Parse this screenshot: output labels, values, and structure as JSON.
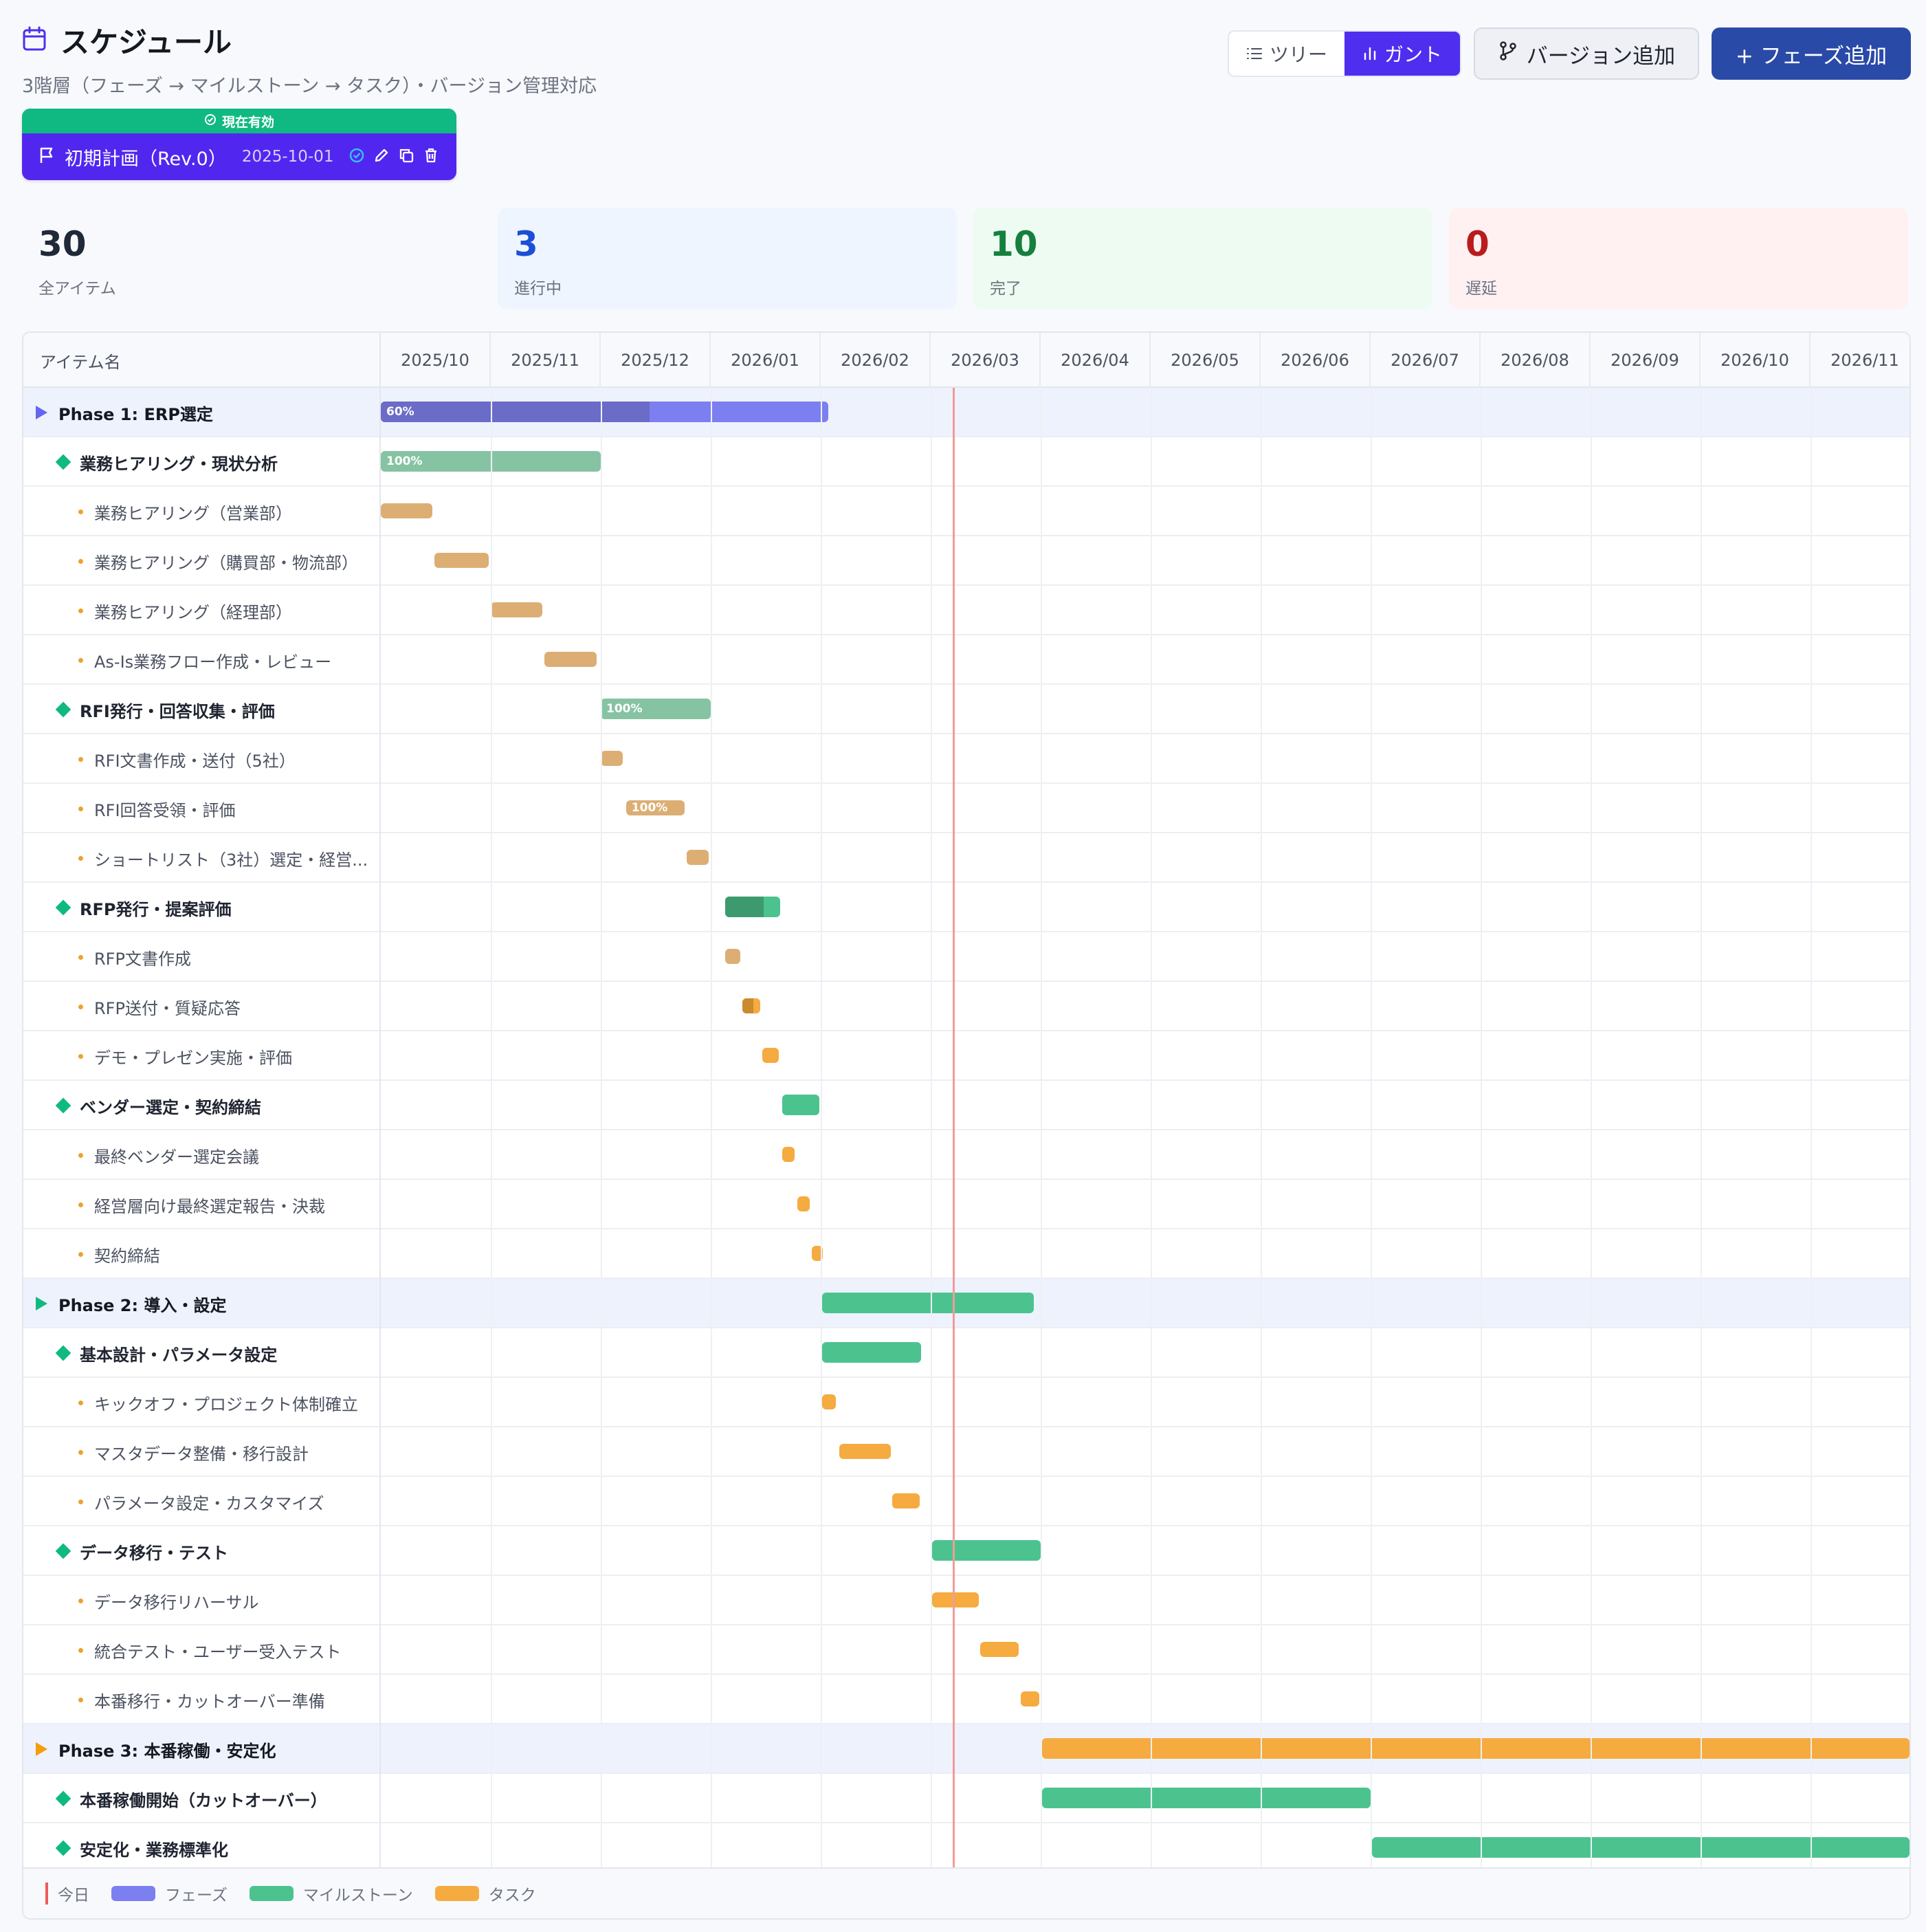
{
  "header": {
    "title": "スケジュール",
    "subtitle": "3階層（フェーズ → マイルストーン → タスク）・バージョン管理対応"
  },
  "view_toggle": {
    "tree_label": "ツリー",
    "gantt_label": "ガント",
    "active": "gantt"
  },
  "buttons": {
    "add_version": "バージョン追加",
    "add_phase": "+ フェーズ追加"
  },
  "version": {
    "badge": "現在有効",
    "name": "初期計画（Rev.0）",
    "date": "2025-10-01"
  },
  "stats": [
    {
      "value": "30",
      "label": "全アイテム",
      "color": "#1f2937",
      "bg": "#f8f9fc"
    },
    {
      "value": "3",
      "label": "進行中",
      "color": "#1d4ed8",
      "bg": "#eef5ff"
    },
    {
      "value": "10",
      "label": "完了",
      "color": "#15803d",
      "bg": "#eefbf2"
    },
    {
      "value": "0",
      "label": "遅延",
      "color": "#b91c1c",
      "bg": "#fff1f1"
    }
  ],
  "gantt": {
    "name_header": "アイテム名",
    "months": [
      "2025/10",
      "2025/11",
      "2025/12",
      "2026/01",
      "2026/02",
      "2026/03",
      "2026/04",
      "2026/05",
      "2026/06",
      "2026/07",
      "2026/08",
      "2026/09",
      "2026/10",
      "2026/11"
    ],
    "today_month_index": 5.2,
    "rows": [
      {
        "type": "phase",
        "name": "Phase 1: ERP選定",
        "color": "#6366f1",
        "start": 0.0,
        "end": 4.07,
        "progress": 60,
        "progress_label": "60%"
      },
      {
        "type": "milestone",
        "name": "業務ヒアリング・現状分析",
        "start": 0.0,
        "end": 2.0,
        "done": true,
        "progress_label": "100%"
      },
      {
        "type": "task",
        "name": "業務ヒアリング（営業部）",
        "start": 0.0,
        "end": 0.47,
        "done": true
      },
      {
        "type": "task",
        "name": "業務ヒアリング（購買部・物流部）",
        "start": 0.49,
        "end": 0.98,
        "done": true
      },
      {
        "type": "task",
        "name": "業務ヒアリング（経理部）",
        "start": 1.0,
        "end": 1.47,
        "done": true
      },
      {
        "type": "task",
        "name": "As-Is業務フロー作成・レビュー",
        "start": 1.49,
        "end": 1.96,
        "done": true
      },
      {
        "type": "milestone",
        "name": "RFI発行・回答収集・評価",
        "start": 2.0,
        "end": 3.0,
        "done": true,
        "progress_label": "100%"
      },
      {
        "type": "task",
        "name": "RFI文書作成・送付（5社）",
        "start": 2.0,
        "end": 2.2,
        "done": true
      },
      {
        "type": "task",
        "name": "RFI回答受領・評価",
        "start": 2.23,
        "end": 2.76,
        "done": true,
        "progress_label": "100%"
      },
      {
        "type": "task",
        "name": "ショートリスト（3社）選定・経営...",
        "start": 2.78,
        "end": 2.98,
        "done": true
      },
      {
        "type": "milestone",
        "name": "RFP発行・提案評価",
        "start": 3.13,
        "end": 3.63,
        "progress": 70
      },
      {
        "type": "task",
        "name": "RFP文書作成",
        "start": 3.13,
        "end": 3.27,
        "done": true
      },
      {
        "type": "task",
        "name": "RFP送付・質疑応答",
        "start": 3.29,
        "end": 3.45,
        "progress": 60
      },
      {
        "type": "task",
        "name": "デモ・プレゼン実施・評価",
        "start": 3.47,
        "end": 3.62
      },
      {
        "type": "milestone",
        "name": "ベンダー選定・契約締結",
        "start": 3.65,
        "end": 3.99
      },
      {
        "type": "task",
        "name": "最終ベンダー選定会議",
        "start": 3.65,
        "end": 3.76
      },
      {
        "type": "task",
        "name": "経営層向け最終選定報告・決裁",
        "start": 3.79,
        "end": 3.9
      },
      {
        "type": "task",
        "name": "契約締結",
        "start": 3.92,
        "end": 4.02
      },
      {
        "type": "phase",
        "name": "Phase 2: 導入・設定",
        "color": "#10b981",
        "start": 4.01,
        "end": 5.94
      },
      {
        "type": "milestone",
        "name": "基本設計・パラメータ設定",
        "start": 4.01,
        "end": 4.91
      },
      {
        "type": "task",
        "name": "キックオフ・プロジェクト体制確立",
        "start": 4.01,
        "end": 4.14
      },
      {
        "type": "task",
        "name": "マスタデータ整備・移行設計",
        "start": 4.17,
        "end": 4.64
      },
      {
        "type": "task",
        "name": "パラメータ設定・カスタマイズ",
        "start": 4.65,
        "end": 4.9
      },
      {
        "type": "milestone",
        "name": "データ移行・テスト",
        "start": 5.01,
        "end": 6.0
      },
      {
        "type": "task",
        "name": "データ移行リハーサル",
        "start": 5.01,
        "end": 5.44
      },
      {
        "type": "task",
        "name": "統合テスト・ユーザー受入テスト",
        "start": 5.45,
        "end": 5.8
      },
      {
        "type": "task",
        "name": "本番移行・カットオーバー準備",
        "start": 5.82,
        "end": 5.99
      },
      {
        "type": "phase",
        "name": "Phase 3: 本番稼働・安定化",
        "color": "#f59e0b",
        "start": 6.01,
        "end": 14.0
      },
      {
        "type": "milestone",
        "name": "本番稼働開始（カットオーバー）",
        "start": 6.01,
        "end": 9.0
      },
      {
        "type": "milestone",
        "name": "安定化・業務標準化",
        "start": 9.01,
        "end": 14.0
      }
    ]
  },
  "legend": {
    "today": "今日",
    "phase": "フェーズ",
    "milestone": "マイルストーン",
    "task": "タスク"
  },
  "colors": {
    "phase": "#7c7ff0",
    "milestone": "#4cc38f",
    "task": "#f5ab40",
    "task_done": "#dcae74",
    "milestone_done": "#86c3a3",
    "accent": "#4f2ef0",
    "today": "#ef5b5b"
  }
}
